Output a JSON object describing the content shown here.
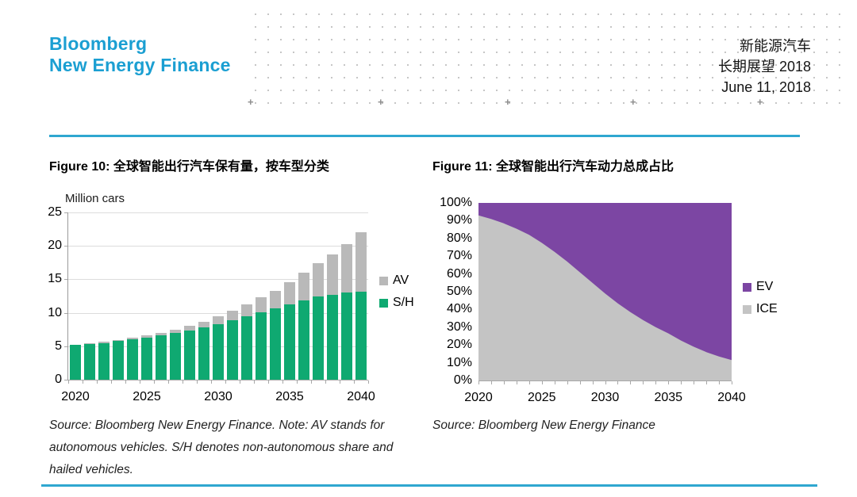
{
  "header": {
    "logo_line1": "Bloomberg",
    "logo_line2": "New Energy Finance",
    "title_line1": "新能源汽车",
    "title_line2": "长期展望 2018",
    "title_line3": "June 11, 2018",
    "brand_color": "#1B9FD2",
    "accent_color": "#2FA7D0",
    "plus_glyph": "+"
  },
  "figure10": {
    "title": "Figure 10: 全球智能出行汽车保有量，按车型分类",
    "unit_label": "Million cars",
    "source_lines": [
      "Source: Bloomberg New Energy Finance. Note: AV stands for",
      "autonomous vehicles. S/H denotes non-autonomous share and",
      "hailed vehicles."
    ]
  },
  "figure11": {
    "title": "Figure 11: 全球智能出行汽车动力总成占比",
    "source": "Source: Bloomberg New Energy Finance"
  },
  "chart_data": [
    {
      "type": "bar",
      "stacked": true,
      "title": "Figure 10: 全球智能出行汽车保有量，按车型分类",
      "ylabel": "Million cars",
      "ylim": [
        0,
        25
      ],
      "ytick_labels": [
        "25",
        "20",
        "15",
        "10",
        "5",
        "0"
      ],
      "grid": "horizontal",
      "legend_position": "right",
      "x": [
        2020,
        2021,
        2022,
        2023,
        2024,
        2025,
        2026,
        2027,
        2028,
        2029,
        2030,
        2031,
        2032,
        2033,
        2034,
        2035,
        2036,
        2037,
        2038,
        2039,
        2040
      ],
      "xtick_years": [
        2020,
        2025,
        2030,
        2035,
        2040
      ],
      "xtick_labels": [
        "2020",
        "2025",
        "2030",
        "2035",
        "2040"
      ],
      "series": [
        {
          "name": "S/H",
          "color": "#0FA971",
          "values": [
            5.2,
            5.4,
            5.5,
            5.8,
            6.1,
            6.3,
            6.6,
            7.0,
            7.4,
            7.8,
            8.3,
            8.9,
            9.5,
            10.1,
            10.7,
            11.3,
            11.9,
            12.4,
            12.7,
            13.0,
            13.2
          ]
        },
        {
          "name": "AV",
          "color": "#B9B9B9",
          "values": [
            0.0,
            0.1,
            0.15,
            0.15,
            0.2,
            0.3,
            0.35,
            0.5,
            0.7,
            0.9,
            1.2,
            1.4,
            1.7,
            2.2,
            2.6,
            3.3,
            4.1,
            5.0,
            6.0,
            7.3,
            8.8
          ]
        }
      ],
      "legend_order": [
        "AV",
        "S/H"
      ]
    },
    {
      "type": "area",
      "stacked": true,
      "normalized": true,
      "title": "Figure 11: 全球智能出行汽车动力总成占比",
      "ylim": [
        0,
        100
      ],
      "ytick_labels": [
        "100%",
        "90%",
        "80%",
        "70%",
        "60%",
        "50%",
        "40%",
        "30%",
        "20%",
        "10%",
        "0%"
      ],
      "legend_position": "right",
      "x": [
        2020,
        2021,
        2022,
        2023,
        2024,
        2025,
        2026,
        2027,
        2028,
        2029,
        2030,
        2031,
        2032,
        2033,
        2034,
        2035,
        2036,
        2037,
        2038,
        2039,
        2040
      ],
      "xtick_years": [
        2020,
        2025,
        2030,
        2035,
        2040
      ],
      "xtick_labels": [
        "2020",
        "2025",
        "2030",
        "2035",
        "2040"
      ],
      "series": [
        {
          "name": "EV",
          "color": "#7C46A3",
          "values": [
            7,
            9,
            11.5,
            14.5,
            18,
            22.5,
            27.5,
            33,
            39,
            45,
            51,
            56.5,
            61.5,
            66,
            70,
            73.5,
            77.5,
            81,
            84,
            86.5,
            88.5
          ]
        },
        {
          "name": "ICE",
          "color": "#C4C4C4",
          "values": [
            93,
            91,
            88.5,
            85.5,
            82,
            77.5,
            72.5,
            67,
            61,
            55,
            49,
            43.5,
            38.5,
            34,
            30,
            26.5,
            22.5,
            19,
            16,
            13.5,
            11.5
          ]
        }
      ],
      "legend_order": [
        "EV",
        "ICE"
      ]
    }
  ]
}
